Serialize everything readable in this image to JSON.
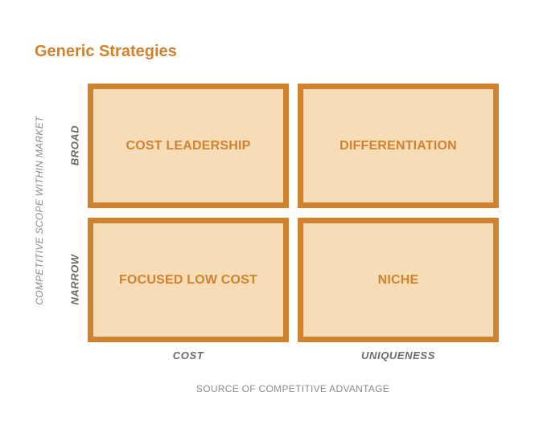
{
  "title": "Generic Strategies",
  "y_axis_title": "COMPETITIVE SCOPE WITHIN MARKET",
  "x_axis_title": "SOURCE OF COMPETITIVE ADVANTAGE",
  "rows": [
    "BROAD",
    "NARROW"
  ],
  "columns": [
    "COST",
    "UNIQUENESS"
  ],
  "cells": {
    "broad_cost": "COST LEADERSHIP",
    "broad_uniqueness": "DIFFERENTIATION",
    "narrow_cost": "FOCUSED LOW COST",
    "narrow_uniqueness": "NICHE"
  },
  "colors": {
    "accent": "#d1822f",
    "cell_fill": "#f6ddb8",
    "axis_text": "#6b6b6b",
    "axis_title_text": "#8a8a8a"
  }
}
